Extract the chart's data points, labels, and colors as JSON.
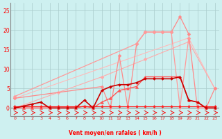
{
  "bg_color": "#cef0f0",
  "grid_color": "#aacccc",
  "xlabel": "Vent moyen/en rafales ( km/h )",
  "ylim": [
    -2,
    27
  ],
  "xlim": [
    -0.5,
    23.5
  ],
  "yticks": [
    0,
    5,
    10,
    15,
    20,
    25
  ],
  "xticks": [
    0,
    1,
    2,
    3,
    4,
    5,
    6,
    7,
    8,
    9,
    10,
    11,
    12,
    13,
    14,
    15,
    16,
    17,
    18,
    19,
    20,
    21,
    22,
    23
  ],
  "lines": [
    {
      "color": "#ffbbbb",
      "lw": 0.8,
      "marker": "D",
      "ms": 2.5,
      "x": [
        0,
        20,
        23
      ],
      "y": [
        2.5,
        18.0,
        5.0
      ]
    },
    {
      "color": "#ffaaaa",
      "lw": 0.8,
      "marker": "D",
      "ms": 2.5,
      "x": [
        0,
        5,
        10,
        15,
        20,
        23
      ],
      "y": [
        0,
        4.0,
        8.0,
        12.5,
        17.0,
        5.0
      ]
    },
    {
      "color": "#ff8888",
      "lw": 0.9,
      "marker": "D",
      "ms": 2.5,
      "x": [
        0,
        10,
        11,
        12,
        13,
        14,
        15,
        16,
        17,
        18,
        19,
        20,
        21,
        22,
        23
      ],
      "y": [
        2.5,
        5.5,
        0,
        13.5,
        0,
        16.5,
        19.5,
        19.5,
        19.5,
        19.5,
        23.5,
        19.0,
        0,
        0,
        5.0
      ]
    },
    {
      "color": "#ff9999",
      "lw": 0.9,
      "marker": "D",
      "ms": 2.5,
      "x": [
        0,
        14,
        15,
        16,
        17,
        18,
        19,
        20
      ],
      "y": [
        3.0,
        16.5,
        19.5,
        19.5,
        19.5,
        19.5,
        0,
        18.0
      ]
    },
    {
      "color": "#ff5555",
      "lw": 1.0,
      "marker": "^",
      "ms": 3.0,
      "x": [
        0,
        1,
        2,
        3,
        4,
        5,
        6,
        7,
        8,
        9,
        10,
        11,
        12,
        13,
        14,
        15,
        16,
        17,
        18,
        19,
        20,
        21,
        22,
        23
      ],
      "y": [
        0,
        0,
        0,
        0,
        0,
        0,
        0,
        0,
        0.5,
        0,
        1.5,
        2.5,
        4.5,
        5.0,
        5.5,
        8.0,
        8.0,
        8.0,
        8.0,
        8.0,
        2.0,
        1.5,
        0,
        0
      ]
    },
    {
      "color": "#ff2222",
      "lw": 0.8,
      "marker": "D",
      "ms": 2.0,
      "x": [
        0,
        1,
        2,
        3,
        4,
        5,
        6,
        7,
        8,
        9,
        10,
        11,
        12,
        13,
        14,
        15,
        16,
        17,
        18,
        19,
        20,
        21,
        22,
        23
      ],
      "y": [
        0.5,
        0.5,
        0.5,
        0.5,
        0.5,
        0.5,
        0.5,
        0.5,
        0.5,
        0.5,
        0.5,
        0.5,
        0.5,
        0.5,
        0.5,
        0.5,
        0.5,
        0.5,
        0.5,
        0.5,
        0.5,
        0.5,
        0.5,
        0.5
      ]
    },
    {
      "color": "#cc0000",
      "lw": 1.2,
      "marker": "D",
      "ms": 2.0,
      "x": [
        0,
        1,
        2,
        3,
        4,
        5,
        6,
        7,
        8,
        9,
        10,
        11,
        12,
        13,
        14,
        15,
        16,
        17,
        18,
        19,
        20,
        21,
        22,
        23
      ],
      "y": [
        0,
        0.5,
        1.0,
        1.5,
        0,
        0,
        0,
        0,
        2.0,
        0,
        4.5,
        5.5,
        6.0,
        6.0,
        6.5,
        7.5,
        7.5,
        7.5,
        7.5,
        8.0,
        2.0,
        1.5,
        0,
        0
      ]
    }
  ]
}
